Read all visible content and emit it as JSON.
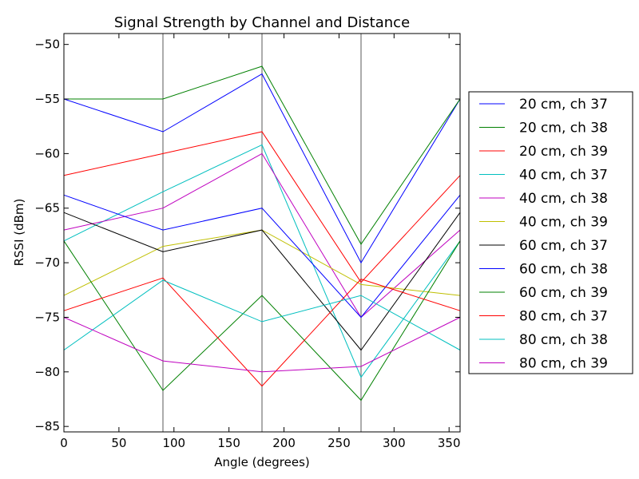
{
  "chart_data": {
    "type": "line",
    "title": "Signal Strength by Channel and Distance",
    "xlabel": "Angle (degrees)",
    "ylabel": "RSSI (dBm)",
    "xlim": [
      0,
      360
    ],
    "ylim": [
      -85.5,
      -49
    ],
    "xticks": [
      0,
      50,
      100,
      150,
      200,
      250,
      300,
      350
    ],
    "yticks": [
      -85,
      -80,
      -75,
      -70,
      -65,
      -60,
      -55,
      -50
    ],
    "xtick_labels": [
      "0",
      "50",
      "100",
      "150",
      "200",
      "250",
      "300",
      "350"
    ],
    "ytick_labels": [
      "−85",
      "−80",
      "−75",
      "−70",
      "−65",
      "−60",
      "−55",
      "−50"
    ],
    "vlines": [
      90,
      180,
      270
    ],
    "vline_color": "#808080",
    "legend_position": "outside-right",
    "grid": false,
    "x": [
      0,
      90,
      180,
      270,
      360
    ],
    "series": [
      {
        "name": "20 cm, ch 37",
        "color": "#0000ff",
        "values": [
          -55,
          -58,
          -52.7,
          -70,
          -55
        ]
      },
      {
        "name": "20 cm, ch 38",
        "color": "#008000",
        "values": [
          -55,
          -55,
          -52,
          -68.3,
          -55
        ]
      },
      {
        "name": "20 cm, ch 39",
        "color": "#ff0000",
        "values": [
          -62,
          -60,
          -58,
          -71.8,
          -62
        ]
      },
      {
        "name": "40 cm, ch 37",
        "color": "#00bfbf",
        "values": [
          -68,
          -63.5,
          -59.2,
          -80.5,
          -68
        ]
      },
      {
        "name": "40 cm, ch 38",
        "color": "#bf00bf",
        "values": [
          -67,
          -65,
          -60,
          -75,
          -67
        ]
      },
      {
        "name": "40 cm, ch 39",
        "color": "#bfbf00",
        "values": [
          -73,
          -68.5,
          -67,
          -72,
          -73
        ]
      },
      {
        "name": "60 cm, ch 37",
        "color": "#000000",
        "values": [
          -65.4,
          -69,
          -67,
          -78,
          -65.4
        ]
      },
      {
        "name": "60 cm, ch 38",
        "color": "#0000ff",
        "values": [
          -63.8,
          -67,
          -65,
          -75,
          -63.8
        ]
      },
      {
        "name": "60 cm, ch 39",
        "color": "#008000",
        "values": [
          -68,
          -81.7,
          -73,
          -82.6,
          -68
        ]
      },
      {
        "name": "80 cm, ch 37",
        "color": "#ff0000",
        "values": [
          -74.4,
          -71.4,
          -81.3,
          -71.5,
          -74.4
        ]
      },
      {
        "name": "80 cm, ch 38",
        "color": "#00bfbf",
        "values": [
          -78,
          -71.6,
          -75.4,
          -73,
          -78
        ]
      },
      {
        "name": "80 cm, ch 39",
        "color": "#bf00bf",
        "values": [
          -75,
          -79,
          -80,
          -79.5,
          -75
        ]
      }
    ]
  }
}
